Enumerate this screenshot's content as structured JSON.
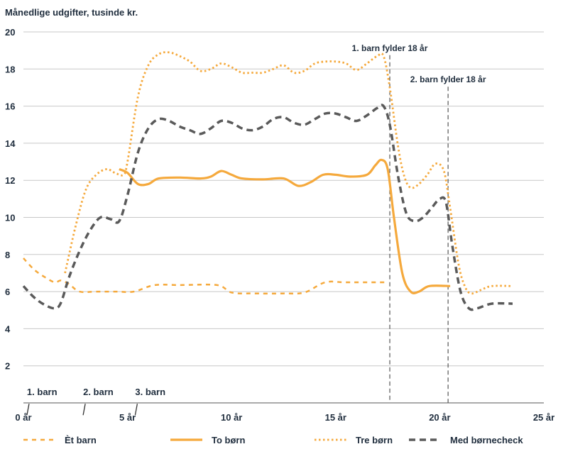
{
  "chart_data": {
    "type": "line",
    "title": "",
    "ylabel": "Månedlige udgifter, tusinde kr.",
    "xlabel": "",
    "xlim": [
      0,
      25
    ],
    "ylim": [
      0,
      20
    ],
    "x_ticks": [
      0,
      5,
      10,
      15,
      20,
      25
    ],
    "x_tick_labels": [
      "0 år",
      "5 år",
      "10 år",
      "15 år",
      "20 år",
      "25 år"
    ],
    "y_ticks": [
      2,
      4,
      6,
      8,
      10,
      12,
      14,
      16,
      18,
      20
    ],
    "y_tick_labels": [
      "2",
      "4",
      "6",
      "8",
      "10",
      "12",
      "14",
      "16",
      "18",
      "20"
    ],
    "grid": "horizontal",
    "legend_position": "bottom",
    "child_markers": [
      {
        "label": "1. barn",
        "x": 0.1
      },
      {
        "label": "2. barn",
        "x": 2.8
      },
      {
        "label": "3. barn",
        "x": 5.3
      }
    ],
    "vertical_annotations": [
      {
        "label": "1. barn fylder 18 år",
        "x": 17.6,
        "y": 18.9
      },
      {
        "label": "2. barn fylder 18 år",
        "x": 20.4,
        "y": 17.2
      }
    ],
    "series": [
      {
        "name": "Èt barn",
        "style": "dashed",
        "color": "#F5A93C",
        "points": [
          [
            0,
            7.8
          ],
          [
            0.5,
            7.2
          ],
          [
            1.0,
            6.8
          ],
          [
            1.5,
            6.5
          ],
          [
            1.8,
            6.6
          ],
          [
            2.2,
            6.4
          ],
          [
            2.7,
            6.0
          ],
          [
            3.5,
            6.0
          ],
          [
            4.5,
            6.0
          ],
          [
            5.3,
            6.0
          ],
          [
            6.3,
            6.35
          ],
          [
            7.5,
            6.35
          ],
          [
            9.3,
            6.35
          ],
          [
            10.0,
            5.95
          ],
          [
            11.0,
            5.9
          ],
          [
            12.5,
            5.9
          ],
          [
            13.5,
            5.95
          ],
          [
            14.5,
            6.5
          ],
          [
            15.5,
            6.5
          ],
          [
            17.5,
            6.5
          ]
        ]
      },
      {
        "name": "To børn",
        "style": "solid",
        "color": "#F5A93C",
        "points": [
          [
            4.6,
            12.6
          ],
          [
            5.0,
            12.4
          ],
          [
            5.5,
            11.8
          ],
          [
            6.0,
            11.8
          ],
          [
            6.5,
            12.1
          ],
          [
            7.5,
            12.15
          ],
          [
            8.5,
            12.1
          ],
          [
            9.0,
            12.2
          ],
          [
            9.5,
            12.5
          ],
          [
            10.0,
            12.3
          ],
          [
            10.5,
            12.1
          ],
          [
            11.5,
            12.05
          ],
          [
            12.5,
            12.1
          ],
          [
            13.2,
            11.7
          ],
          [
            13.8,
            11.9
          ],
          [
            14.4,
            12.3
          ],
          [
            15.0,
            12.3
          ],
          [
            15.7,
            12.2
          ],
          [
            16.5,
            12.3
          ],
          [
            16.9,
            12.8
          ],
          [
            17.2,
            13.1
          ],
          [
            17.5,
            12.6
          ],
          [
            17.8,
            10.0
          ],
          [
            18.2,
            7.0
          ],
          [
            18.6,
            6.0
          ],
          [
            19.0,
            6.0
          ],
          [
            19.5,
            6.3
          ],
          [
            20.5,
            6.3
          ]
        ]
      },
      {
        "name": "Tre børn",
        "style": "dotted",
        "color": "#F5A93C",
        "points": [
          [
            2.0,
            7.0
          ],
          [
            2.5,
            9.5
          ],
          [
            3.0,
            11.5
          ],
          [
            3.5,
            12.3
          ],
          [
            4.0,
            12.6
          ],
          [
            4.4,
            12.4
          ],
          [
            4.8,
            12.3
          ],
          [
            5.0,
            13.0
          ],
          [
            5.5,
            16.5
          ],
          [
            6.0,
            18.2
          ],
          [
            6.5,
            18.8
          ],
          [
            7.0,
            18.9
          ],
          [
            7.5,
            18.7
          ],
          [
            8.0,
            18.4
          ],
          [
            8.5,
            17.9
          ],
          [
            9.0,
            18.0
          ],
          [
            9.5,
            18.3
          ],
          [
            10.0,
            18.1
          ],
          [
            10.5,
            17.8
          ],
          [
            11.0,
            17.8
          ],
          [
            11.5,
            17.8
          ],
          [
            12.0,
            18.0
          ],
          [
            12.5,
            18.2
          ],
          [
            13.0,
            17.8
          ],
          [
            13.5,
            17.9
          ],
          [
            14.0,
            18.3
          ],
          [
            14.5,
            18.4
          ],
          [
            15.0,
            18.4
          ],
          [
            15.5,
            18.3
          ],
          [
            16.0,
            17.95
          ],
          [
            16.5,
            18.3
          ],
          [
            17.0,
            18.7
          ],
          [
            17.3,
            18.7
          ],
          [
            17.6,
            17.0
          ],
          [
            18.0,
            13.8
          ],
          [
            18.3,
            12.2
          ],
          [
            18.6,
            11.6
          ],
          [
            19.0,
            11.8
          ],
          [
            19.4,
            12.3
          ],
          [
            19.8,
            12.9
          ],
          [
            20.2,
            12.5
          ],
          [
            20.5,
            10.5
          ],
          [
            20.9,
            7.5
          ],
          [
            21.2,
            6.3
          ],
          [
            21.5,
            5.9
          ],
          [
            22.0,
            6.1
          ],
          [
            22.5,
            6.3
          ],
          [
            23.5,
            6.3
          ]
        ]
      },
      {
        "name": "Med børnecheck",
        "style": "dashed",
        "color": "#5A5A5A",
        "points": [
          [
            0,
            6.3
          ],
          [
            0.5,
            5.7
          ],
          [
            1.0,
            5.3
          ],
          [
            1.5,
            5.1
          ],
          [
            1.8,
            5.4
          ],
          [
            2.2,
            6.8
          ],
          [
            2.7,
            8.2
          ],
          [
            3.2,
            9.3
          ],
          [
            3.7,
            10.0
          ],
          [
            4.2,
            9.9
          ],
          [
            4.6,
            9.8
          ],
          [
            5.0,
            11.2
          ],
          [
            5.5,
            13.5
          ],
          [
            6.0,
            14.8
          ],
          [
            6.5,
            15.3
          ],
          [
            7.0,
            15.2
          ],
          [
            7.5,
            14.9
          ],
          [
            8.0,
            14.7
          ],
          [
            8.5,
            14.5
          ],
          [
            9.0,
            14.8
          ],
          [
            9.5,
            15.2
          ],
          [
            10.0,
            15.1
          ],
          [
            10.5,
            14.8
          ],
          [
            11.0,
            14.7
          ],
          [
            11.5,
            14.9
          ],
          [
            12.0,
            15.3
          ],
          [
            12.5,
            15.4
          ],
          [
            13.0,
            15.1
          ],
          [
            13.5,
            15.0
          ],
          [
            14.0,
            15.3
          ],
          [
            14.5,
            15.6
          ],
          [
            15.0,
            15.6
          ],
          [
            15.5,
            15.4
          ],
          [
            16.0,
            15.2
          ],
          [
            16.5,
            15.5
          ],
          [
            17.0,
            15.9
          ],
          [
            17.3,
            16.0
          ],
          [
            17.6,
            15.0
          ],
          [
            18.0,
            12.2
          ],
          [
            18.4,
            10.2
          ],
          [
            18.8,
            9.8
          ],
          [
            19.2,
            10.0
          ],
          [
            19.6,
            10.5
          ],
          [
            20.0,
            11.0
          ],
          [
            20.3,
            10.8
          ],
          [
            20.6,
            8.5
          ],
          [
            21.0,
            6.0
          ],
          [
            21.4,
            5.1
          ],
          [
            21.8,
            5.1
          ],
          [
            22.5,
            5.35
          ],
          [
            23.5,
            5.35
          ]
        ]
      }
    ]
  }
}
